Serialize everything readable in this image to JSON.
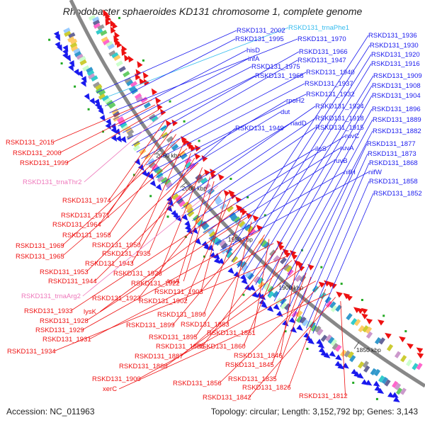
{
  "title": "Rhodobacter sphaeroides KD131 chromosome 1, complete genome",
  "footer": {
    "accession": "Accession: NC_011963",
    "summary": "Topology: circular; Length: 3,152,792 bp; Genes: 3,143"
  },
  "colors": {
    "forward": "#1a1aee",
    "reverse": "#ee1111",
    "trna_forward": "#33bbee",
    "trna_reverse": "#ee77bb",
    "backbone": "#888888",
    "tick": "#22aa22"
  },
  "kbp_markers": [
    "2050 kbp",
    "2000 kbp",
    "1950 kbp",
    "1900 kbp",
    "1850 kbp"
  ],
  "forward_labels": [
    "RSKD131_2002",
    "RSKD131_trnaPhe1",
    "RSKD131_1995",
    "RSKD131_1970",
    "hisD",
    "infA",
    "RSKD131_1975",
    "RSKD131_1968",
    "RSKD131_1966",
    "RSKD131_1947",
    "RSKD131_1940",
    "RSKD131_1937",
    "RSKD131_1932",
    "rpoH2",
    "dut",
    "RSKD131_1949",
    "nadD",
    "RSKD131_1924",
    "RSKD131_1918",
    "RSKD131_1915",
    "ileS",
    "ruvC",
    "ruvA",
    "ruvB",
    "nifH",
    "nifW",
    "RSKD131_1936",
    "RSKD131_1930",
    "RSKD131_1920",
    "RSKD131_1916",
    "RSKD131_1909",
    "RSKD131_1908",
    "RSKD131_1904",
    "RSKD131_1896",
    "RSKD131_1889",
    "RSKD131_1882",
    "RSKD131_1877",
    "RSKD131_1873",
    "RSKD131_1868",
    "RSKD131_1858",
    "RSKD131_1852"
  ],
  "reverse_labels": [
    "RSKD131_2015",
    "RSKD131_2000",
    "RSKD131_1999",
    "RSKD131_trnaThr2",
    "RSKD131_1974",
    "RSKD131_1971",
    "RSKD131_1964",
    "RSKD131_1958",
    "RSKD131_1969",
    "RSKD131_1950",
    "RSKD131_1965",
    "RSKD131_1935",
    "RSKD131_1943",
    "RSKD131_1953",
    "RSKD131_1926",
    "RSKD131_1944",
    "RSKD131_1922",
    "truA",
    "RSKD131_trnaArg2",
    "RSKD131_1923",
    "RSKD131_1903",
    "RSKD131_1902",
    "RSKD131_1933",
    "lysK",
    "RSKD131_1890",
    "RSKD131_1928",
    "RSKD131_1883",
    "RSKD131_1899",
    "RSKD131_1929",
    "RSKD131_1895",
    "RSKD131_1861",
    "RSKD131_1931",
    "RSKD131_1886",
    "RSKD131_1860",
    "RSKD131_1934",
    "RSKD131_1887",
    "RSKD131_1846",
    "RSKD131_1888",
    "RSKD131_1845",
    "RSKD131_1835",
    "RSKD131_1900",
    "RSKD131_1856",
    "RSKD131_1826",
    "xerC",
    "RSKD131_1842",
    "RSKD131_1812"
  ]
}
